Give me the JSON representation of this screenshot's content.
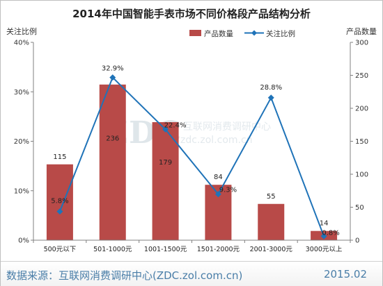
{
  "footer": {
    "source": "数据来源：互联网消费调研中心(ZDC.zol.com.cn)",
    "date": "2015.02"
  },
  "watermark": {
    "logo": "ZDC",
    "cn": "互联网消费调研中心",
    "url": "zdc.zol.com.cn"
  },
  "chart_data": {
    "type": "bar",
    "title": "2014年中国智能手表市场不同价格段产品结构分析",
    "categories": [
      "500元以下",
      "501-1000元",
      "1001-1500元",
      "1501-2000元",
      "2001-3000元",
      "3000元以上"
    ],
    "series": [
      {
        "name": "产品数量",
        "type": "bar",
        "axis": "right",
        "color": "#b84a48",
        "values": [
          115,
          236,
          179,
          84,
          55,
          14
        ],
        "labels": [
          "115",
          "236",
          "179",
          "84",
          "55",
          "14"
        ]
      },
      {
        "name": "关注比例",
        "type": "line",
        "axis": "left",
        "color": "#1f73b8",
        "values": [
          5.8,
          32.9,
          22.4,
          9.3,
          28.8,
          0.8
        ],
        "labels": [
          "5.8%",
          "32.9%",
          "22.4%",
          "9.3%",
          "28.8%",
          "0.8%"
        ]
      }
    ],
    "y_left": {
      "label": "关注比例",
      "range": [
        0,
        40
      ],
      "ticks": [
        "0%",
        "10%",
        "20%",
        "30%",
        "40%"
      ]
    },
    "y_right": {
      "label": "产品数量",
      "range": [
        0,
        300
      ],
      "ticks": [
        "0",
        "50",
        "100",
        "150",
        "200",
        "250",
        "300"
      ]
    },
    "grid": false,
    "legend": "top-right"
  }
}
